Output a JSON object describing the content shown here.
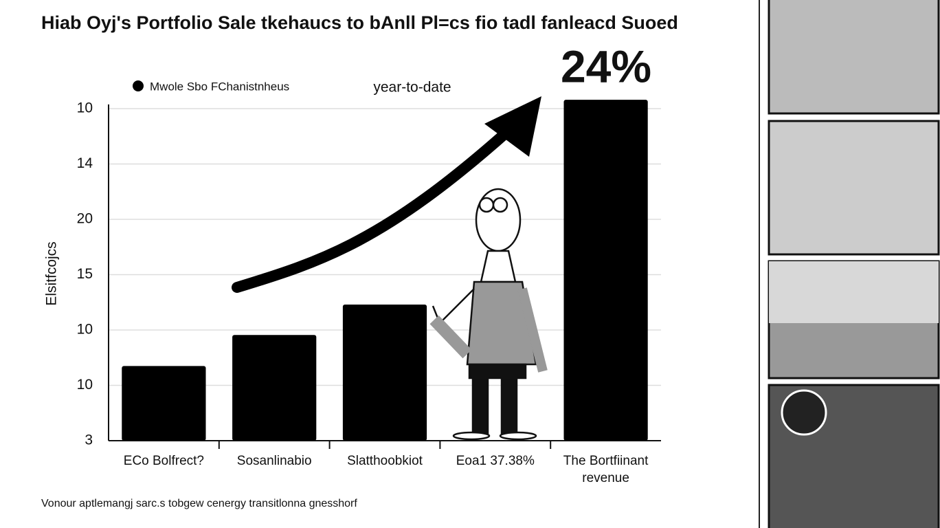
{
  "chart_data": {
    "type": "bar",
    "title": "Hiab Oyj's Portfolio Sale tkehaucs to bAnll Pl=cs fio tadl fanleacd Suoed",
    "legend_label": "Mwole Sbo FChanistnheus",
    "annotation_period": "year-to-date",
    "annotation_value": "24%",
    "y_label": "Elsitfcojcs",
    "footnote": "Vonour aptlemangj sarc.s tobgew cenergy transitlonna gnesshorf",
    "categories": [
      "ECo Bolfrect?",
      "Sosanlinabio",
      "Slatthoobkiot",
      "Eoa1 37.38%",
      "The Bortfiinant revenue"
    ],
    "values": [
      1.35,
      1.91,
      2.46,
      null,
      6.16
    ],
    "color": "#000000",
    "ylim": [
      0,
      6.2
    ],
    "yticks": [
      {
        "value": 0,
        "label": "3"
      },
      {
        "value": 1,
        "label": "10"
      },
      {
        "value": 2,
        "label": "10"
      },
      {
        "value": 3,
        "label": "15"
      },
      {
        "value": 4,
        "label": "20"
      },
      {
        "value": 5,
        "label": "14"
      },
      {
        "value": 6,
        "label": "10"
      }
    ],
    "grid": true
  }
}
